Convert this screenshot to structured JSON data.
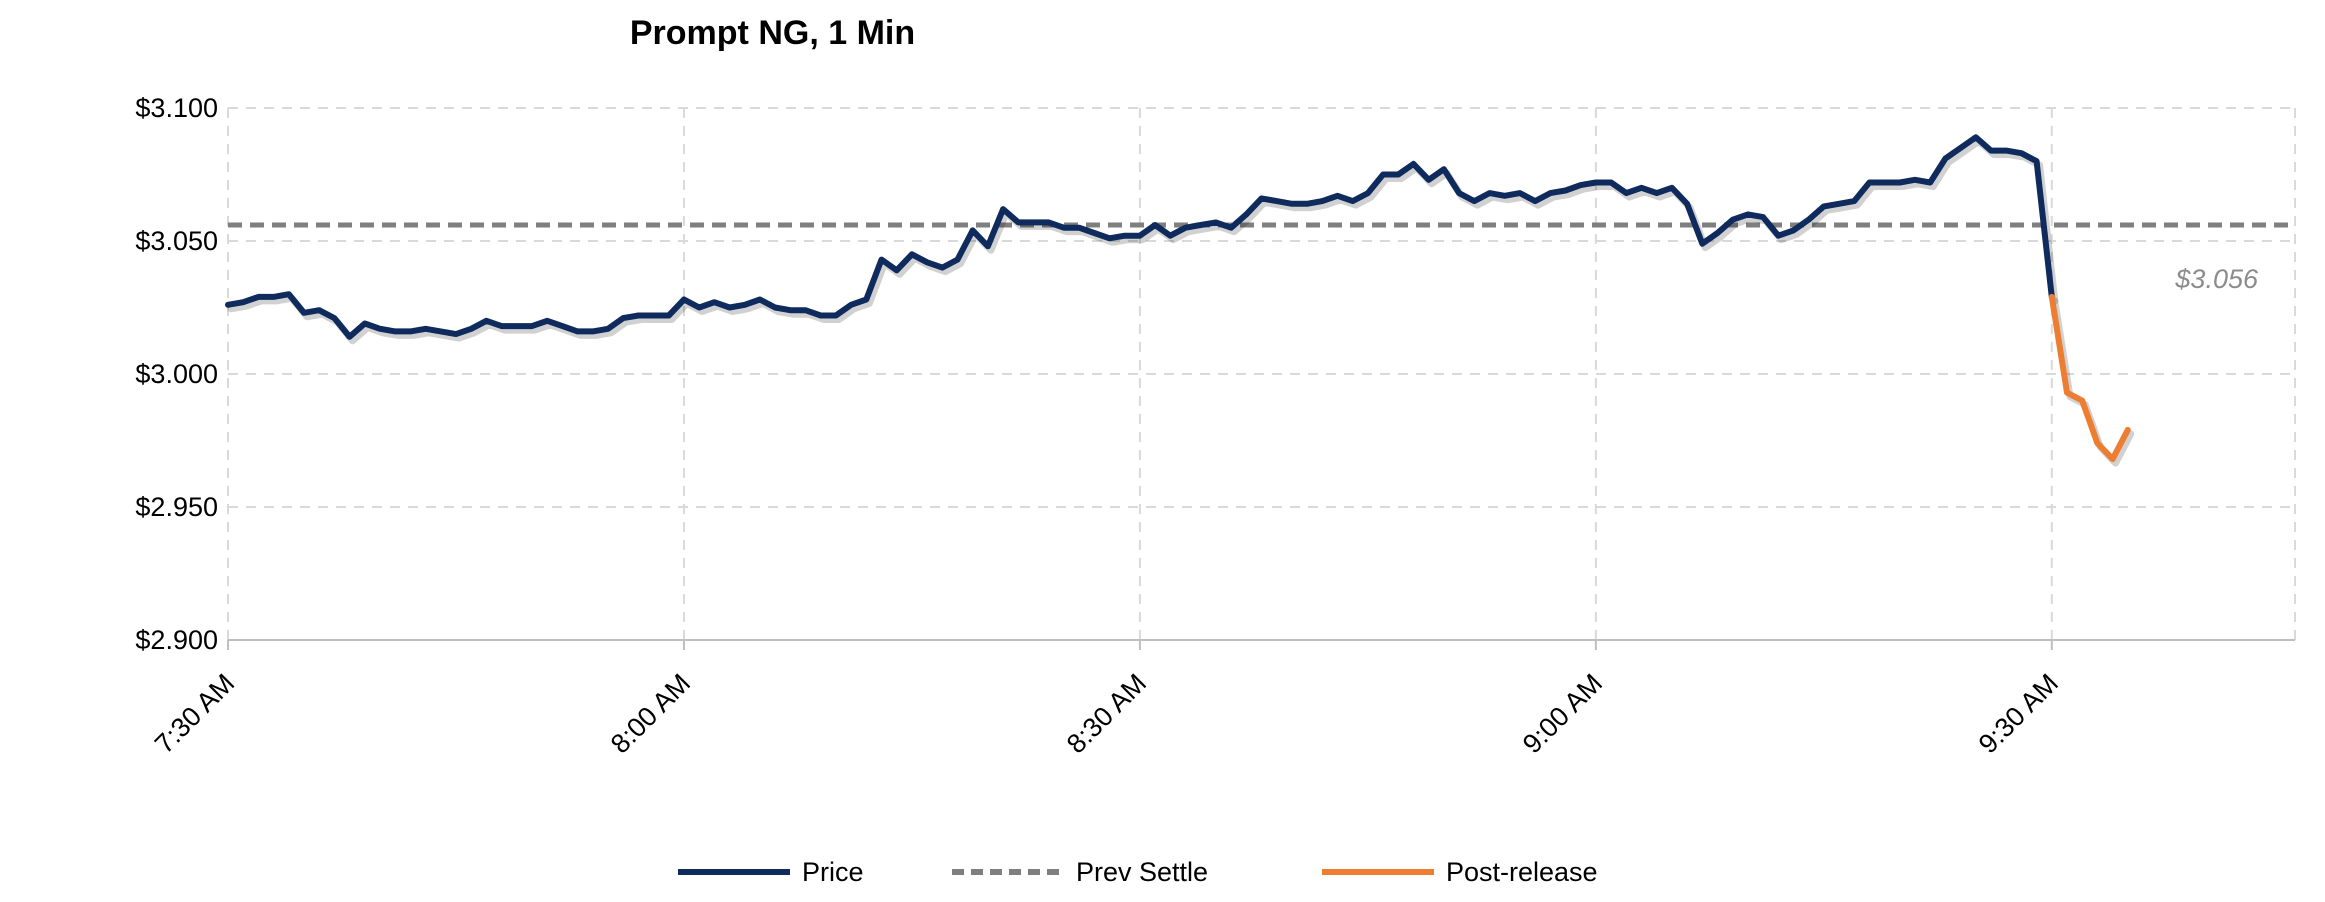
{
  "chart_data": {
    "type": "line",
    "title": "Prompt NG, 1 Min",
    "xlabel": "",
    "ylabel": "",
    "ylim": [
      2.9,
      3.1
    ],
    "y_ticks": [
      "$3.100",
      "$3.050",
      "$3.000",
      "$2.950",
      "$2.900"
    ],
    "y_tick_values": [
      3.1,
      3.05,
      3.0,
      2.95,
      2.9
    ],
    "x_ticks": [
      "7:30 AM",
      "8:00 AM",
      "8:30 AM",
      "9:00 AM",
      "9:30 AM"
    ],
    "x_tick_minutes": [
      0,
      30,
      60,
      90,
      120
    ],
    "xlim_minutes": [
      0,
      136
    ],
    "grid": true,
    "legend_position": "bottom",
    "colors": {
      "price": "#0f2a5c",
      "settle": "#7f7f7f",
      "post": "#ed7d31",
      "grid": "#d9d9d9"
    },
    "series": [
      {
        "name": "Price",
        "x": [
          0,
          1,
          2,
          3,
          4,
          5,
          6,
          7,
          8,
          9,
          10,
          11,
          12,
          13,
          14,
          15,
          16,
          17,
          18,
          19,
          20,
          21,
          22,
          23,
          24,
          25,
          26,
          27,
          28,
          29,
          30,
          31,
          32,
          33,
          34,
          35,
          36,
          37,
          38,
          39,
          40,
          41,
          42,
          43,
          44,
          45,
          46,
          47,
          48,
          49,
          50,
          51,
          52,
          53,
          54,
          55,
          56,
          57,
          58,
          59,
          60,
          61,
          62,
          63,
          64,
          65,
          66,
          67,
          68,
          69,
          70,
          71,
          72,
          73,
          74,
          75,
          76,
          77,
          78,
          79,
          80,
          81,
          82,
          83,
          84,
          85,
          86,
          87,
          88,
          89,
          90,
          91,
          92,
          93,
          94,
          95,
          96,
          97,
          98,
          99,
          100,
          101,
          102,
          103,
          104,
          105,
          106,
          107,
          108,
          109,
          110,
          111,
          112,
          113,
          114,
          115,
          116,
          117,
          118,
          119,
          120
        ],
        "values": [
          3.026,
          3.027,
          3.029,
          3.029,
          3.03,
          3.023,
          3.024,
          3.021,
          3.014,
          3.019,
          3.017,
          3.016,
          3.016,
          3.017,
          3.016,
          3.015,
          3.017,
          3.02,
          3.018,
          3.018,
          3.018,
          3.02,
          3.018,
          3.016,
          3.016,
          3.017,
          3.021,
          3.022,
          3.022,
          3.022,
          3.028,
          3.025,
          3.027,
          3.025,
          3.026,
          3.028,
          3.025,
          3.024,
          3.024,
          3.022,
          3.022,
          3.026,
          3.028,
          3.043,
          3.039,
          3.045,
          3.042,
          3.04,
          3.043,
          3.054,
          3.048,
          3.062,
          3.057,
          3.057,
          3.057,
          3.055,
          3.055,
          3.053,
          3.051,
          3.052,
          3.052,
          3.056,
          3.052,
          3.055,
          3.056,
          3.057,
          3.055,
          3.06,
          3.066,
          3.065,
          3.064,
          3.064,
          3.065,
          3.067,
          3.065,
          3.068,
          3.075,
          3.075,
          3.079,
          3.073,
          3.077,
          3.068,
          3.065,
          3.068,
          3.067,
          3.068,
          3.065,
          3.068,
          3.069,
          3.071,
          3.072,
          3.072,
          3.068,
          3.07,
          3.068,
          3.07,
          3.064,
          3.049,
          3.053,
          3.058,
          3.06,
          3.059,
          3.052,
          3.054,
          3.058,
          3.063,
          3.064,
          3.065,
          3.072,
          3.072,
          3.072,
          3.073,
          3.072,
          3.081,
          3.085,
          3.089,
          3.084,
          3.084,
          3.083,
          3.08,
          3.029
        ]
      },
      {
        "name": "Prev Settle",
        "value": 3.056,
        "label": "$3.056"
      },
      {
        "name": "Post-release",
        "x": [
          120,
          121,
          122,
          123,
          124,
          125
        ],
        "values": [
          3.029,
          2.993,
          2.99,
          2.974,
          2.968,
          2.979
        ]
      }
    ]
  }
}
